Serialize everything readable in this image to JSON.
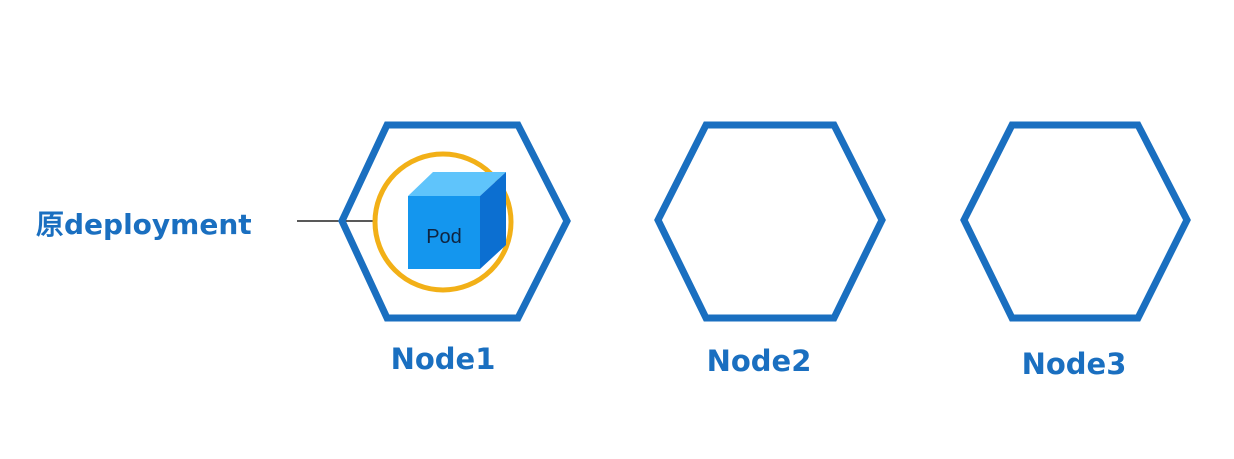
{
  "deployment": {
    "label": "原deployment"
  },
  "pod": {
    "label": "Pod"
  },
  "nodes": [
    {
      "label": "Node1",
      "has_pod": true
    },
    {
      "label": "Node2",
      "has_pod": false
    },
    {
      "label": "Node3",
      "has_pod": false
    }
  ],
  "colors": {
    "node_stroke": "#1a6fc0",
    "label_text": "#1a6fc0",
    "pod_ring": "#f2b017",
    "pod_front": "#1496ee",
    "pod_top": "#5fc4fb",
    "pod_side": "#0c6fd1",
    "connector": "#222222"
  },
  "icons": {
    "node": "hexagon-icon",
    "pod": "cube-icon"
  }
}
